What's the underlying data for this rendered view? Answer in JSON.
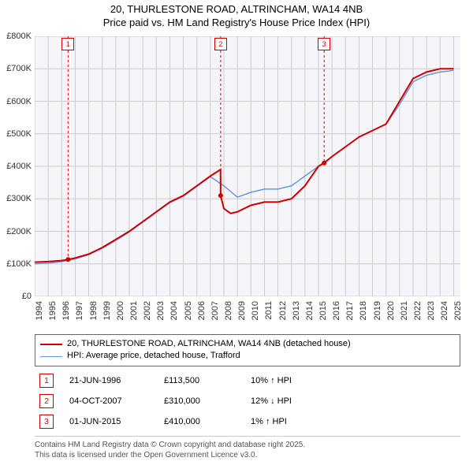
{
  "title_line1": "20, THURLESTONE ROAD, ALTRINCHAM, WA14 4NB",
  "title_line2": "Price paid vs. HM Land Registry's House Price Index (HPI)",
  "chart": {
    "type": "line",
    "background_color": "#f5f5fa",
    "grid_color": "#cccccc",
    "xlim": [
      1994,
      2025.5
    ],
    "ylim": [
      0,
      800
    ],
    "y_ticks": [
      0,
      100,
      200,
      300,
      400,
      500,
      600,
      700,
      800
    ],
    "y_tick_labels": [
      "£0",
      "£100K",
      "£200K",
      "£300K",
      "£400K",
      "£500K",
      "£600K",
      "£700K",
      "£800K"
    ],
    "x_ticks": [
      1994,
      1995,
      1996,
      1997,
      1998,
      1999,
      2000,
      2001,
      2002,
      2003,
      2004,
      2005,
      2006,
      2007,
      2008,
      2009,
      2010,
      2011,
      2012,
      2013,
      2014,
      2015,
      2016,
      2017,
      2018,
      2019,
      2020,
      2021,
      2022,
      2023,
      2024,
      2025
    ],
    "series": [
      {
        "name": "price_paid",
        "label": "20, THURLESTONE ROAD, ALTRINCHAM, WA14 4NB (detached house)",
        "color": "#d00000",
        "line_width": 2,
        "x": [
          1994,
          1995,
          1996,
          1996.5,
          1997,
          1998,
          1999,
          2000,
          2001,
          2002,
          2003,
          2004,
          2005,
          2006,
          2007,
          2007.75,
          2007.76,
          2008,
          2008.5,
          2009,
          2010,
          2011,
          2012,
          2013,
          2014,
          2015,
          2015.4,
          2015.42,
          2016,
          2017,
          2018,
          2019,
          2020,
          2021,
          2022,
          2023,
          2024,
          2025
        ],
        "y": [
          105,
          107,
          110,
          113.5,
          118,
          130,
          150,
          175,
          200,
          230,
          260,
          290,
          310,
          340,
          370,
          390,
          310,
          270,
          255,
          260,
          280,
          290,
          290,
          300,
          340,
          400,
          410,
          410,
          430,
          460,
          490,
          510,
          530,
          600,
          670,
          690,
          700,
          700
        ]
      },
      {
        "name": "hpi",
        "label": "HPI: Average price, detached house, Trafford",
        "color": "#6699dd",
        "line_width": 1.5,
        "x": [
          1994,
          1995,
          1996,
          1997,
          1998,
          1999,
          2000,
          2001,
          2002,
          2003,
          2004,
          2005,
          2006,
          2007,
          2008,
          2009,
          2010,
          2011,
          2012,
          2013,
          2014,
          2015,
          2016,
          2017,
          2018,
          2019,
          2020,
          2021,
          2022,
          2023,
          2024,
          2025
        ],
        "y": [
          100,
          102,
          107,
          115,
          128,
          148,
          172,
          198,
          228,
          258,
          288,
          308,
          338,
          368,
          340,
          305,
          320,
          330,
          330,
          340,
          370,
          400,
          430,
          460,
          490,
          510,
          530,
          590,
          660,
          680,
          690,
          695
        ]
      }
    ],
    "sale_markers": [
      {
        "n": "1",
        "year": 1996.47,
        "top_offset": 0
      },
      {
        "n": "2",
        "year": 2007.76,
        "top_offset": 0
      },
      {
        "n": "3",
        "year": 2015.42,
        "top_offset": 0
      }
    ]
  },
  "legend": {
    "items": [
      {
        "color": "#d00000",
        "width": 2,
        "label": "20, THURLESTONE ROAD, ALTRINCHAM, WA14 4NB (detached house)"
      },
      {
        "color": "#6699dd",
        "width": 1.5,
        "label": "HPI: Average price, detached house, Trafford"
      }
    ]
  },
  "sales": [
    {
      "n": "1",
      "date": "21-JUN-1996",
      "price": "£113,500",
      "pct": "10% ↑ HPI"
    },
    {
      "n": "2",
      "date": "04-OCT-2007",
      "price": "£310,000",
      "pct": "12% ↓ HPI"
    },
    {
      "n": "3",
      "date": "01-JUN-2015",
      "price": "£410,000",
      "pct": "1% ↑ HPI"
    }
  ],
  "footer_line1": "Contains HM Land Registry data © Crown copyright and database right 2025.",
  "footer_line2": "This data is licensed under the Open Government Licence v3.0."
}
